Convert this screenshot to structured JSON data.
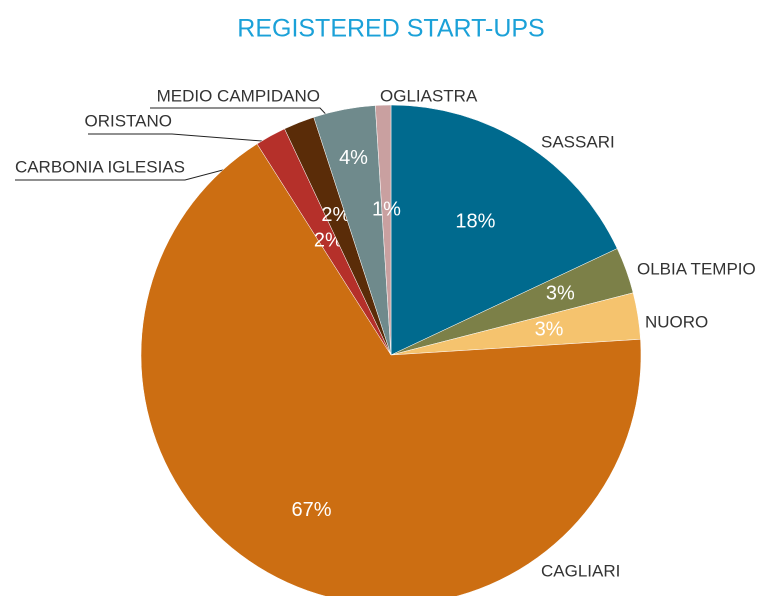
{
  "chart_data": {
    "type": "pie",
    "title": "REGISTERED START-UPS",
    "categories": [
      "SASSARI",
      "OLBIA TEMPIO",
      "NUORO",
      "CAGLIARI",
      "CARBONIA IGLESIAS",
      "ORISTANO",
      "MEDIO CAMPIDANO",
      "OGLIASTRA"
    ],
    "values": [
      18,
      3,
      3,
      67,
      2,
      2,
      4,
      1
    ],
    "value_labels": [
      "18%",
      "3%",
      "3%",
      "67%",
      "2%",
      "2%",
      "4%",
      "1%"
    ],
    "colors": [
      "#006a8e",
      "#7c8048",
      "#f5c36e",
      "#cc6e12",
      "#b5302a",
      "#5a2c08",
      "#6f8a8c",
      "#c9a0a0"
    ]
  }
}
